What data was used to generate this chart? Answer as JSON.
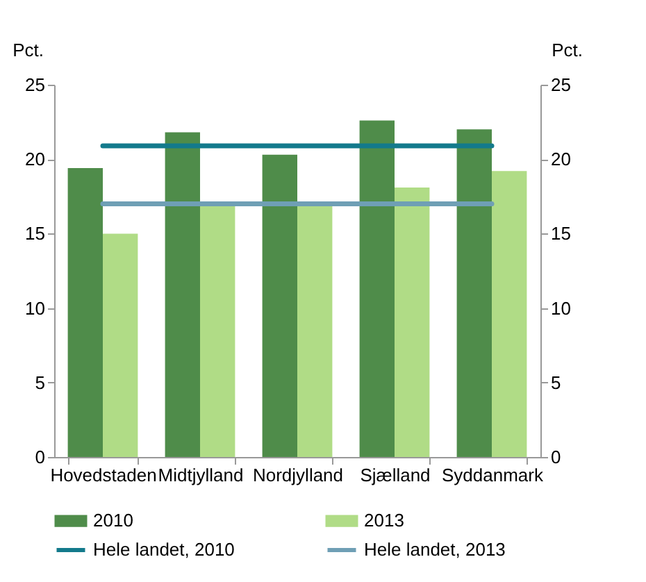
{
  "chart_data": {
    "type": "bar",
    "ylabel": "Pct.",
    "y2label": "Pct.",
    "categories": [
      "Hovedstaden",
      "Midtjylland",
      "Nordjylland",
      "Sjælland",
      "Syddanmark"
    ],
    "series": [
      {
        "name": "2010",
        "color": "#4f8c4a",
        "values": [
          19.4,
          21.8,
          20.3,
          22.6,
          22.0
        ]
      },
      {
        "name": "2013",
        "color": "#b0dc86",
        "values": [
          15.0,
          17.0,
          17.0,
          18.1,
          19.2
        ]
      },
      {
        "name": "Hele landet, 2010",
        "type": "line",
        "color": "#137a8c",
        "values": [
          20.9,
          20.9,
          20.9,
          20.9,
          20.9
        ]
      },
      {
        "name": "Hele landet, 2013",
        "type": "line",
        "color": "#6f9fb5",
        "values": [
          17.0,
          17.0,
          17.0,
          17.0,
          17.0
        ]
      }
    ],
    "ylim": [
      0,
      25
    ],
    "yticks": [
      0,
      5,
      10,
      15,
      20,
      25
    ],
    "y2lim": [
      0,
      25
    ],
    "y2ticks": [
      0,
      5,
      10,
      15,
      20,
      25
    ],
    "grid": false,
    "legend": "bottom"
  }
}
